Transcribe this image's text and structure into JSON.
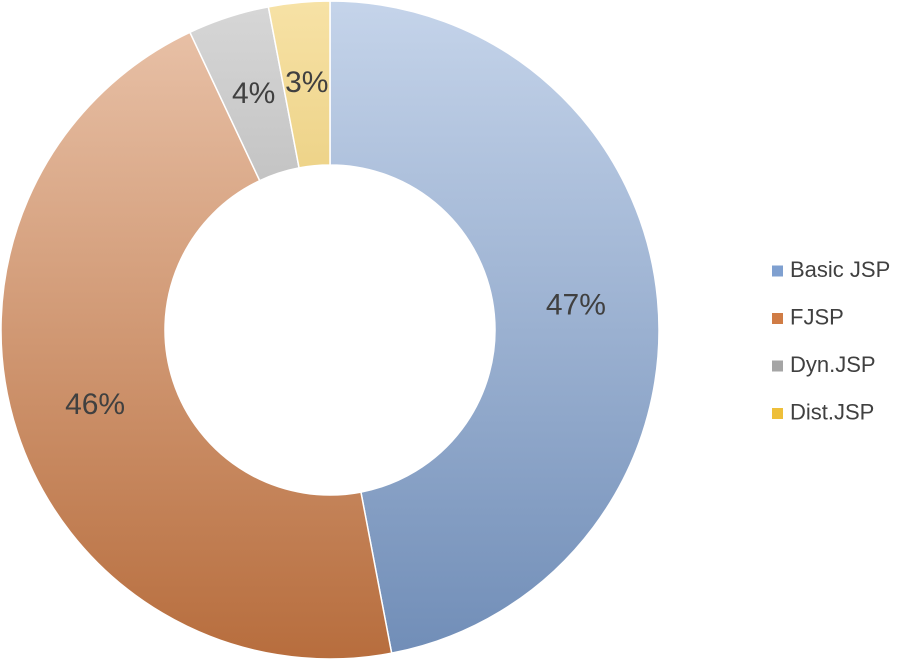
{
  "chart_data": {
    "type": "pie",
    "categories": [
      "Basic JSP",
      "FJSP",
      "Dyn.JSP",
      "Dist.JSP"
    ],
    "values": [
      47,
      46,
      4,
      3
    ],
    "value_labels": [
      "47%",
      "46%",
      "4%",
      "3%"
    ],
    "colors": [
      "#7fa0d0",
      "#d07c45",
      "#a5a5a5",
      "#eebf3a"
    ],
    "legend": "right"
  }
}
